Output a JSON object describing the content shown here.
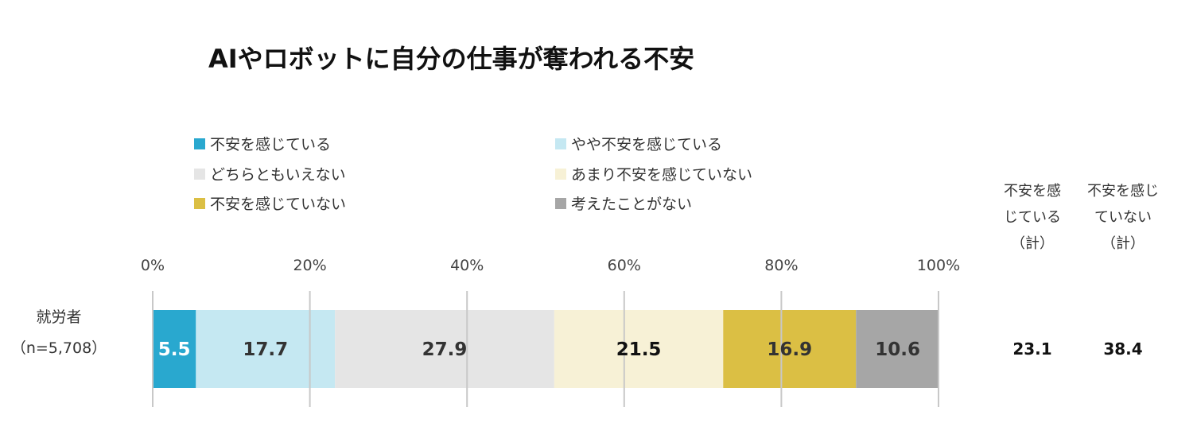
{
  "chart_data": {
    "type": "bar",
    "orientation": "horizontal",
    "stacked": true,
    "title": "AIやロボットに自分の仕事が奪われる不安",
    "categories": [
      "就労者\n（n=5,708）"
    ],
    "category_lines": [
      [
        "就労者",
        "（n=5,708）"
      ]
    ],
    "xlim": [
      0,
      100
    ],
    "xticks": [
      0,
      20,
      40,
      60,
      80,
      100
    ],
    "xtick_labels": [
      "0%",
      "20%",
      "40%",
      "60%",
      "80%",
      "100%"
    ],
    "grid": "vertical",
    "legend_position": "top",
    "series": [
      {
        "name": "不安を感じている",
        "values": [
          5.5
        ],
        "color": "#29a8cf",
        "label_color": "#ffffff"
      },
      {
        "name": "やや不安を感じている",
        "values": [
          17.7
        ],
        "color": "#c5e8f2",
        "label_color": "#333333"
      },
      {
        "name": "どちらともいえない",
        "values": [
          27.9
        ],
        "color": "#e5e5e5",
        "label_color": "#333333"
      },
      {
        "name": "あまり不安を感じていない",
        "values": [
          21.5
        ],
        "color": "#f7f1d6",
        "label_color": "#111111"
      },
      {
        "name": "不安を感じていない",
        "values": [
          16.9
        ],
        "color": "#dbbf44",
        "label_color": "#333333"
      },
      {
        "name": "考えたことがない",
        "values": [
          10.6
        ],
        "color": "#a6a6a6",
        "label_color": "#333333"
      }
    ],
    "totals": [
      {
        "header_lines": [
          "不安を感",
          "じている",
          "（計）"
        ],
        "values": [
          23.1
        ]
      },
      {
        "header_lines": [
          "不安を感じ",
          "ていない",
          "（計）"
        ],
        "values": [
          38.4
        ]
      }
    ]
  }
}
